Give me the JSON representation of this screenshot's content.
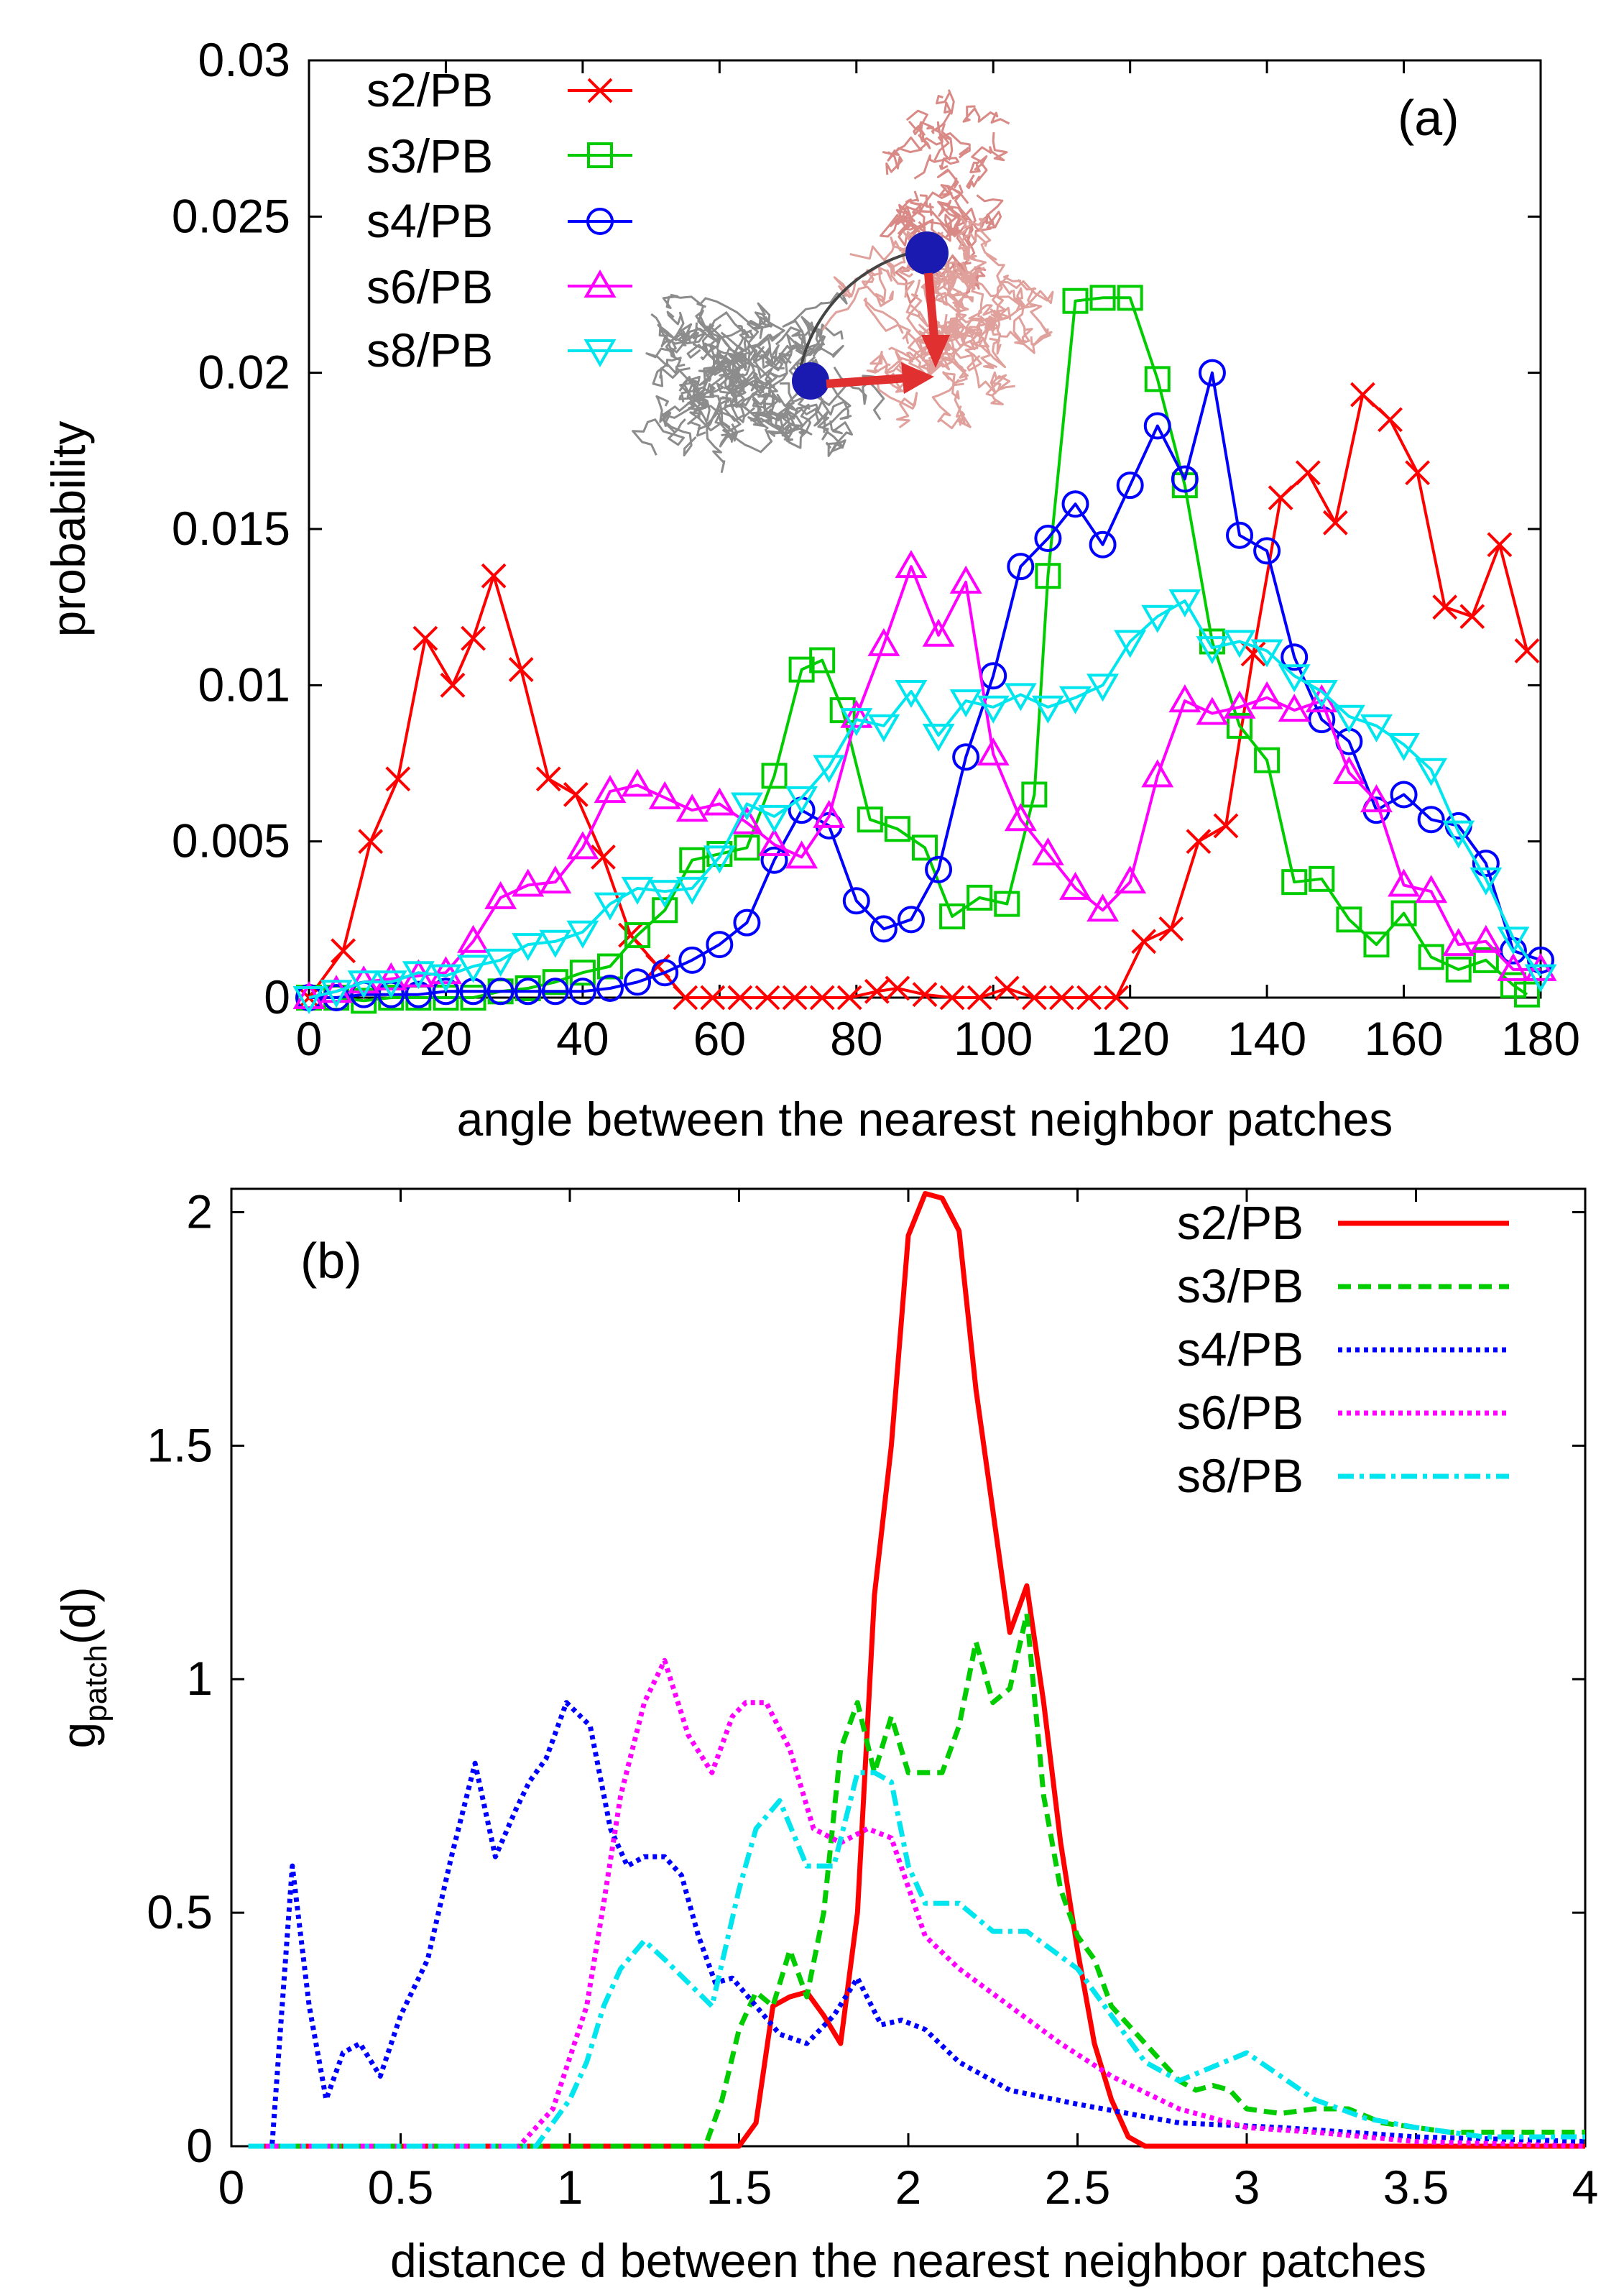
{
  "chart_data": [
    {
      "type": "line",
      "panel_label": "(a)",
      "xlabel": "angle between the nearest neighbor patches",
      "ylabel": "probability",
      "xlim": [
        0,
        180
      ],
      "ylim": [
        0,
        0.03
      ],
      "xticks": [
        "0",
        "20",
        "40",
        "60",
        "80",
        "100",
        "120",
        "140",
        "160",
        "180"
      ],
      "yticks": [
        "0",
        "0.005",
        "0.01",
        "0.015",
        "0.02",
        "0.025",
        "0.03"
      ],
      "legend_position": "top-left",
      "inset": "molecular rendering of two polymer-grafted particles with patch vectors",
      "series": [
        {
          "name": "s2/PB",
          "color": "#ff0000",
          "marker": "x",
          "x": [
            0,
            5,
            9,
            13,
            17,
            21,
            24,
            27,
            31,
            35,
            39,
            43,
            47,
            51,
            55,
            59,
            63,
            67,
            71,
            75,
            79,
            83,
            86,
            90,
            94,
            98,
            102,
            106,
            110,
            114,
            118,
            122,
            126,
            130,
            134,
            138,
            142,
            146,
            150,
            154,
            158,
            162,
            166,
            170,
            174,
            178
          ],
          "y": [
            0,
            0.0015,
            0.005,
            0.007,
            0.0115,
            0.01,
            0.0115,
            0.0135,
            0.0105,
            0.007,
            0.0065,
            0.0045,
            0.002,
            0.001,
            0,
            0,
            0,
            0,
            0,
            0,
            0,
            0.0002,
            0.0003,
            0.0001,
            0,
            0,
            0.0003,
            0,
            0,
            0,
            0,
            0.0018,
            0.0022,
            0.005,
            0.0055,
            0.011,
            0.016,
            0.0168,
            0.0152,
            0.0193,
            0.0185,
            0.0168,
            0.0125,
            0.0122,
            0.0145,
            0.0111
          ]
        },
        {
          "name": "s3/PB",
          "color": "#00cc00",
          "marker": "square",
          "x": [
            0,
            4,
            8,
            12,
            16,
            20,
            24,
            28,
            32,
            36,
            40,
            44,
            48,
            52,
            56,
            60,
            64,
            68,
            72,
            75,
            78,
            82,
            86,
            90,
            94,
            98,
            102,
            106,
            108,
            112,
            116,
            120,
            124,
            128,
            132,
            136,
            140,
            144,
            148,
            152,
            156,
            160,
            164,
            168,
            172,
            176,
            178
          ],
          "y": [
            0,
            0,
            -0.0001,
            0,
            0,
            0,
            0,
            0.0002,
            0.0003,
            0.0005,
            0.0008,
            0.001,
            0.002,
            0.0028,
            0.0044,
            0.0046,
            0.0048,
            0.0071,
            0.0105,
            0.0108,
            0.0092,
            0.0057,
            0.0054,
            0.0048,
            0.0026,
            0.0032,
            0.003,
            0.0065,
            0.0135,
            0.0223,
            0.0224,
            0.0224,
            0.0198,
            0.0164,
            0.0114,
            0.0087,
            0.0076,
            0.0037,
            0.0038,
            0.0025,
            0.0017,
            0.0027,
            0.0013,
            0.0009,
            0.0012,
            0.0004,
            0.0001
          ]
        },
        {
          "name": "s4/PB",
          "color": "#0000ff",
          "marker": "circle",
          "x": [
            0,
            4,
            8,
            12,
            16,
            20,
            24,
            28,
            32,
            36,
            40,
            44,
            48,
            52,
            56,
            60,
            64,
            68,
            72,
            76,
            80,
            84,
            88,
            92,
            96,
            100,
            104,
            108,
            112,
            116,
            120,
            124,
            128,
            132,
            136,
            140,
            144,
            148,
            152,
            156,
            160,
            164,
            168,
            172,
            176,
            180
          ],
          "y": [
            0,
            0,
            0.0001,
            0.0001,
            0.0001,
            0.0002,
            0.0002,
            0.0002,
            0.0002,
            0.0002,
            0.0002,
            0.0003,
            0.0005,
            0.0008,
            0.0012,
            0.0017,
            0.0024,
            0.0044,
            0.006,
            0.0055,
            0.0031,
            0.0022,
            0.0025,
            0.0041,
            0.0077,
            0.0103,
            0.0138,
            0.0147,
            0.0158,
            0.0145,
            0.0164,
            0.0183,
            0.0166,
            0.02,
            0.0148,
            0.0143,
            0.0109,
            0.0089,
            0.0082,
            0.006,
            0.0065,
            0.0057,
            0.0055,
            0.0043,
            0.0015,
            0.0012
          ]
        },
        {
          "name": "s6/PB",
          "color": "#ff00ff",
          "marker": "triangle-up",
          "x": [
            0,
            4,
            8,
            12,
            16,
            20,
            24,
            28,
            32,
            36,
            40,
            44,
            48,
            52,
            56,
            60,
            64,
            68,
            72,
            76,
            80,
            84,
            88,
            92,
            96,
            100,
            104,
            108,
            112,
            116,
            120,
            124,
            128,
            132,
            136,
            140,
            144,
            148,
            152,
            156,
            160,
            164,
            168,
            172,
            176,
            180
          ],
          "y": [
            0,
            0.0002,
            0.0005,
            0.0006,
            0.0007,
            0.0008,
            0.0018,
            0.0032,
            0.0036,
            0.0037,
            0.0048,
            0.0066,
            0.0068,
            0.0064,
            0.006,
            0.0062,
            0.0056,
            0.0049,
            0.0045,
            0.0058,
            0.009,
            0.0113,
            0.0138,
            0.0116,
            0.0133,
            0.0078,
            0.0057,
            0.0046,
            0.0035,
            0.0028,
            0.0037,
            0.0071,
            0.0095,
            0.0091,
            0.0093,
            0.0096,
            0.0092,
            0.0095,
            0.0072,
            0.0063,
            0.0036,
            0.0034,
            0.0017,
            0.0018,
            0.0009,
            0.0009
          ]
        },
        {
          "name": "s8/PB",
          "color": "#00e5ee",
          "marker": "triangle-down",
          "x": [
            0,
            4,
            8,
            12,
            16,
            20,
            24,
            28,
            32,
            36,
            40,
            44,
            48,
            52,
            56,
            60,
            64,
            68,
            72,
            76,
            80,
            84,
            88,
            92,
            96,
            100,
            104,
            108,
            112,
            116,
            120,
            124,
            128,
            132,
            136,
            140,
            144,
            148,
            152,
            156,
            160,
            164,
            168,
            172,
            176,
            180
          ],
          "y": [
            0,
            0.0002,
            0.0005,
            0.0005,
            0.0008,
            0.0007,
            0.001,
            0.0012,
            0.0017,
            0.0018,
            0.0021,
            0.003,
            0.0035,
            0.0034,
            0.0035,
            0.0045,
            0.0062,
            0.0058,
            0.0064,
            0.0074,
            0.0089,
            0.0087,
            0.0098,
            0.0084,
            0.0095,
            0.0093,
            0.0097,
            0.0093,
            0.0096,
            0.01,
            0.0114,
            0.0122,
            0.0127,
            0.0112,
            0.0114,
            0.0111,
            0.0103,
            0.0098,
            0.009,
            0.0087,
            0.0081,
            0.0073,
            0.0053,
            0.0038,
            0.0019,
            0.0007
          ]
        }
      ]
    },
    {
      "type": "line",
      "panel_label": "(b)",
      "xlabel": "distance d between the nearest neighbor patches",
      "ylabel_main": "g",
      "ylabel_sub": "patch",
      "ylabel_tail": "(d)",
      "xlim": [
        0,
        4
      ],
      "ylim": [
        0,
        2.05
      ],
      "xticks": [
        "0",
        "0.5",
        "1",
        "1.5",
        "2",
        "2.5",
        "3",
        "3.5",
        "4"
      ],
      "yticks": [
        "0",
        "0.5",
        "1",
        "1.5",
        "2"
      ],
      "legend_position": "top-right",
      "series": [
        {
          "name": "s2/PB",
          "color": "#ff0000",
          "dash": "solid",
          "x": [
            0.05,
            1.5,
            1.55,
            1.6,
            1.65,
            1.7,
            1.75,
            1.8,
            1.85,
            1.9,
            1.95,
            2.0,
            2.05,
            2.1,
            2.15,
            2.2,
            2.25,
            2.3,
            2.35,
            2.4,
            2.45,
            2.5,
            2.55,
            2.6,
            2.65,
            2.7,
            2.8,
            3.0,
            3.2,
            3.4,
            3.6,
            3.8,
            4.0
          ],
          "y": [
            0,
            0,
            0.05,
            0.3,
            0.32,
            0.33,
            0.28,
            0.22,
            0.5,
            1.18,
            1.5,
            1.95,
            2.04,
            2.03,
            1.96,
            1.62,
            1.36,
            1.1,
            1.2,
            0.95,
            0.65,
            0.42,
            0.22,
            0.1,
            0.02,
            0,
            0,
            0,
            0,
            0,
            0,
            0,
            0
          ]
        },
        {
          "name": "s3/PB",
          "color": "#00cc00",
          "dash": "dashed",
          "x": [
            0.05,
            1.4,
            1.45,
            1.5,
            1.55,
            1.6,
            1.65,
            1.7,
            1.75,
            1.8,
            1.85,
            1.9,
            1.95,
            2.0,
            2.05,
            2.1,
            2.15,
            2.2,
            2.25,
            2.3,
            2.35,
            2.4,
            2.45,
            2.5,
            2.55,
            2.6,
            2.7,
            2.8,
            2.85,
            2.9,
            2.95,
            3.0,
            3.1,
            3.2,
            3.3,
            3.4,
            3.5,
            3.6,
            3.8,
            4.0
          ],
          "y": [
            0,
            0,
            0.1,
            0.25,
            0.33,
            0.3,
            0.42,
            0.32,
            0.5,
            0.85,
            0.95,
            0.8,
            0.92,
            0.8,
            0.8,
            0.8,
            0.9,
            1.08,
            0.95,
            0.98,
            1.14,
            0.75,
            0.55,
            0.45,
            0.4,
            0.3,
            0.22,
            0.14,
            0.12,
            0.13,
            0.12,
            0.08,
            0.07,
            0.08,
            0.08,
            0.05,
            0.04,
            0.03,
            0.03,
            0.03
          ]
        },
        {
          "name": "s4/PB",
          "color": "#0000ff",
          "dash": "dotted",
          "x": [
            0.05,
            0.12,
            0.18,
            0.23,
            0.28,
            0.33,
            0.38,
            0.44,
            0.5,
            0.58,
            0.65,
            0.72,
            0.78,
            0.84,
            0.88,
            0.93,
            0.99,
            1.06,
            1.12,
            1.17,
            1.22,
            1.28,
            1.33,
            1.38,
            1.43,
            1.48,
            1.55,
            1.62,
            1.7,
            1.78,
            1.85,
            1.92,
            1.98,
            2.05,
            2.15,
            2.3,
            2.5,
            2.8,
            3.1,
            3.5,
            4.0
          ],
          "y": [
            0,
            0,
            0.6,
            0.3,
            0.1,
            0.2,
            0.22,
            0.15,
            0.28,
            0.4,
            0.62,
            0.82,
            0.62,
            0.72,
            0.78,
            0.83,
            0.95,
            0.9,
            0.68,
            0.6,
            0.62,
            0.62,
            0.58,
            0.45,
            0.35,
            0.36,
            0.3,
            0.24,
            0.22,
            0.28,
            0.36,
            0.26,
            0.27,
            0.25,
            0.18,
            0.12,
            0.09,
            0.05,
            0.04,
            0.02,
            0.01
          ]
        },
        {
          "name": "s6/PB",
          "color": "#ff00ff",
          "dash": "dotted",
          "x": [
            0.05,
            0.85,
            0.95,
            1.05,
            1.1,
            1.15,
            1.22,
            1.28,
            1.35,
            1.42,
            1.48,
            1.52,
            1.58,
            1.65,
            1.72,
            1.8,
            1.88,
            1.95,
            2.05,
            2.15,
            2.3,
            2.45,
            2.6,
            2.8,
            3.0,
            3.2,
            3.5,
            4.0
          ],
          "y": [
            0,
            0,
            0.08,
            0.3,
            0.52,
            0.75,
            0.95,
            1.04,
            0.88,
            0.8,
            0.92,
            0.95,
            0.95,
            0.85,
            0.68,
            0.65,
            0.68,
            0.66,
            0.45,
            0.38,
            0.3,
            0.22,
            0.15,
            0.08,
            0.04,
            0.03,
            0.01,
            0
          ]
        },
        {
          "name": "s8/PB",
          "color": "#00e5ee",
          "dash": "dashdot",
          "x": [
            0.05,
            0.9,
            0.95,
            1.0,
            1.05,
            1.1,
            1.15,
            1.22,
            1.28,
            1.35,
            1.42,
            1.5,
            1.55,
            1.62,
            1.7,
            1.78,
            1.85,
            1.9,
            1.95,
            2.0,
            2.05,
            2.15,
            2.25,
            2.35,
            2.5,
            2.6,
            2.7,
            2.8,
            2.9,
            3.0,
            3.1,
            3.2,
            3.35,
            3.5,
            3.7,
            4.0
          ],
          "y": [
            0,
            0,
            0.05,
            0.1,
            0.18,
            0.3,
            0.38,
            0.44,
            0.4,
            0.35,
            0.3,
            0.55,
            0.68,
            0.74,
            0.6,
            0.6,
            0.8,
            0.8,
            0.78,
            0.6,
            0.52,
            0.52,
            0.46,
            0.46,
            0.38,
            0.28,
            0.18,
            0.14,
            0.17,
            0.2,
            0.15,
            0.1,
            0.06,
            0.04,
            0.02,
            0.02
          ]
        }
      ]
    }
  ]
}
